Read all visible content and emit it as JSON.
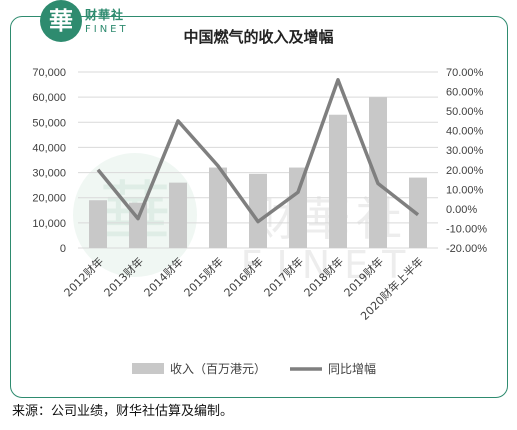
{
  "brand": {
    "logo_char": "華",
    "name_cn": "财華社",
    "name_en": "FINET"
  },
  "chart_data": {
    "type": "bar",
    "title": "中国燃气的收入及增幅",
    "categories": [
      "2012财年",
      "2013财年",
      "2014财年",
      "2015财年",
      "2016财年",
      "2017财年",
      "2018财年",
      "2019财年",
      "2020财年上半年"
    ],
    "series": [
      {
        "name": "收入（百万港元）",
        "type": "bar",
        "axis": "left",
        "values": [
          19000,
          18000,
          26000,
          32000,
          29500,
          32000,
          53000,
          60000,
          28000
        ],
        "color": "#c8c8c8"
      },
      {
        "name": "同比增幅",
        "type": "line",
        "axis": "right",
        "values": [
          20.0,
          -5.0,
          45.0,
          22.0,
          -6.5,
          8.5,
          66.0,
          13.0,
          -3.0
        ],
        "color": "#7f7f7f"
      }
    ],
    "yleft": {
      "min": 0,
      "max": 70000,
      "ticks": [
        "0",
        "10,000",
        "20,000",
        "30,000",
        "40,000",
        "50,000",
        "60,000",
        "70,000"
      ]
    },
    "yright": {
      "min": -20,
      "max": 70,
      "ticks": [
        "-20.00%",
        "-10.00%",
        "0.00%",
        "10.00%",
        "20.00%",
        "30.00%",
        "40.00%",
        "50.00%",
        "60.00%",
        "70.00%"
      ]
    },
    "legend": "bottom"
  },
  "source": "来源：公司业绩，财华社估算及编制。"
}
